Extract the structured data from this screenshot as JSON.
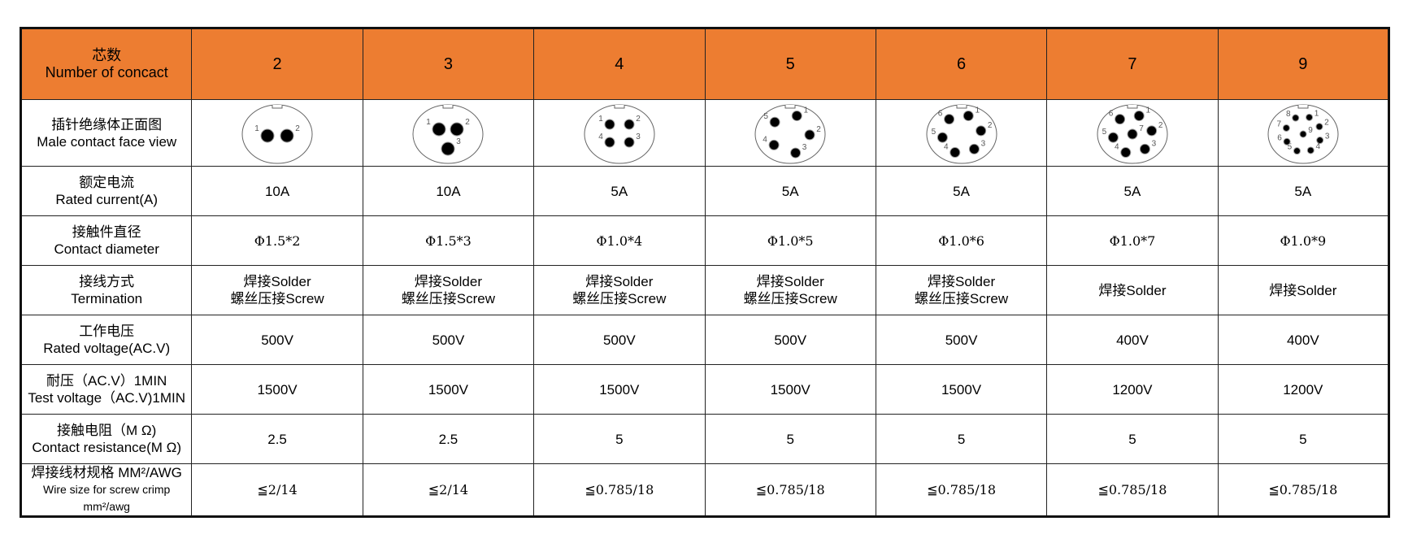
{
  "header": {
    "label_cn": "芯数",
    "label_en": "Number of concact",
    "columns": [
      "2",
      "3",
      "4",
      "5",
      "6",
      "7",
      "9"
    ]
  },
  "colors": {
    "header_bg": "#ED7D31"
  },
  "face_view": {
    "label_cn": "插针绝缘体正面图",
    "label_en": "Male contact face view",
    "pin_labels": [
      [
        "1",
        "2"
      ],
      [
        "1",
        "2",
        "3"
      ],
      [
        "1",
        "2",
        "3",
        "4"
      ],
      [
        "1",
        "2",
        "3",
        "4",
        "5"
      ],
      [
        "1",
        "2",
        "3",
        "4",
        "5",
        "6"
      ],
      [
        "1",
        "2",
        "3",
        "4",
        "5",
        "6",
        "7"
      ],
      [
        "1",
        "2",
        "3",
        "4",
        "5",
        "6",
        "7",
        "8",
        "9"
      ]
    ]
  },
  "rows": [
    {
      "label_cn": "额定电流",
      "label_en": "Rated current(A)",
      "values": [
        "10A",
        "10A",
        "5A",
        "5A",
        "5A",
        "5A",
        "5A"
      ]
    },
    {
      "label_cn": "接触件直径",
      "label_en": "Contact diameter",
      "values": [
        "Φ1.5*2",
        "Φ1.5*3",
        "Φ1.0*4",
        "Φ1.0*5",
        "Φ1.0*6",
        "Φ1.0*7",
        "Φ1.0*9"
      ]
    },
    {
      "label_cn": "接线方式",
      "label_en": "Termination",
      "values": [
        [
          "焊接Solder",
          "螺丝压接Screw"
        ],
        [
          "焊接Solder",
          "螺丝压接Screw"
        ],
        [
          "焊接Solder",
          "螺丝压接Screw"
        ],
        [
          "焊接Solder",
          "螺丝压接Screw"
        ],
        [
          "焊接Solder",
          "螺丝压接Screw"
        ],
        [
          "焊接Solder"
        ],
        [
          "焊接Solder"
        ]
      ]
    },
    {
      "label_cn": "工作电压",
      "label_en": "Rated voltage(AC.V)",
      "values": [
        "500V",
        "500V",
        "500V",
        "500V",
        "500V",
        "400V",
        "400V"
      ]
    },
    {
      "label_cn": "耐压（AC.V）1MIN",
      "label_en": "Test voltage（AC.V)1MIN",
      "values": [
        "1500V",
        "1500V",
        "1500V",
        "1500V",
        "1500V",
        "1200V",
        "1200V"
      ]
    },
    {
      "label_cn": "接触电阻（M Ω)",
      "label_en": "Contact resistance(M Ω)",
      "values": [
        "2.5",
        "2.5",
        "5",
        "5",
        "5",
        "5",
        "5"
      ]
    },
    {
      "label_cn": "焊接线材规格 MM²/AWG",
      "label_en": "Wire size for screw crimp mm²/awg",
      "values": [
        "≦2/14",
        "≦2/14",
        "≦0.785/18",
        "≦0.785/18",
        "≦0.785/18",
        "≦0.785/18",
        "≦0.785/18"
      ]
    }
  ]
}
